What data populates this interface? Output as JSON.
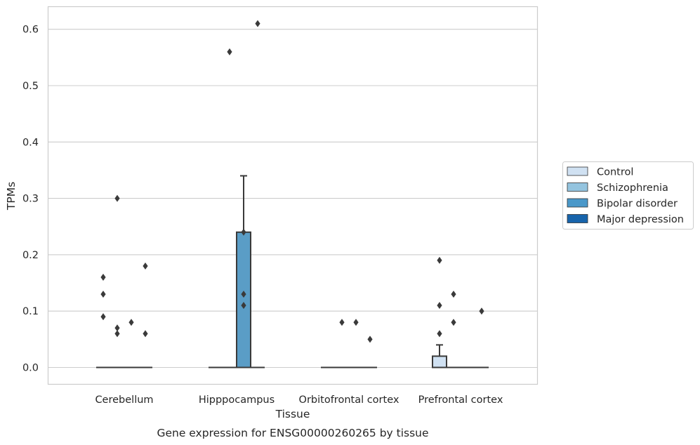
{
  "chart_data": {
    "type": "box",
    "title": "",
    "caption": "Gene expression for ENSG00000260265 by tissue",
    "xlabel": "Tissue",
    "ylabel": "TPMs",
    "ylim": [
      -0.03,
      0.64
    ],
    "yticks": [
      0.0,
      0.1,
      0.2,
      0.3,
      0.4,
      0.5,
      0.6
    ],
    "ytick_labels": [
      "0.0",
      "0.1",
      "0.2",
      "0.3",
      "0.4",
      "0.5",
      "0.6"
    ],
    "categories": [
      "Cerebellum",
      "Hipppocampus",
      "Orbitofrontal cortex",
      "Prefrontal cortex"
    ],
    "grid": true,
    "legend_position": "right",
    "series": [
      {
        "name": "Control",
        "color": "#d0e1f2",
        "boxes": [
          {
            "q1": 0,
            "median": 0,
            "q3": 0,
            "whisker_low": 0,
            "whisker_high": 0,
            "outliers": [
              0.16,
              0.13,
              0.09
            ]
          },
          {
            "q1": 0,
            "median": 0,
            "q3": 0,
            "whisker_low": 0,
            "whisker_high": 0,
            "outliers": []
          },
          {
            "q1": 0,
            "median": 0,
            "q3": 0,
            "whisker_low": 0,
            "whisker_high": 0,
            "outliers": []
          },
          {
            "q1": 0,
            "median": 0,
            "q3": 0.02,
            "whisker_low": 0,
            "whisker_high": 0.04,
            "outliers": [
              0.19,
              0.11,
              0.06
            ]
          }
        ]
      },
      {
        "name": "Schizophrenia",
        "color": "#94c4df",
        "boxes": [
          {
            "q1": 0,
            "median": 0,
            "q3": 0,
            "whisker_low": 0,
            "whisker_high": 0,
            "outliers": [
              0.3,
              0.07,
              0.06
            ]
          },
          {
            "q1": 0,
            "median": 0,
            "q3": 0,
            "whisker_low": 0,
            "whisker_high": 0,
            "outliers": [
              0.56
            ]
          },
          {
            "q1": 0,
            "median": 0,
            "q3": 0,
            "whisker_low": 0,
            "whisker_high": 0,
            "outliers": [
              0.08
            ]
          },
          {
            "q1": 0,
            "median": 0,
            "q3": 0,
            "whisker_low": 0,
            "whisker_high": 0,
            "outliers": [
              0.13,
              0.08
            ]
          }
        ]
      },
      {
        "name": "Bipolar disorder",
        "color": "#4a98c9",
        "boxes": [
          {
            "q1": 0,
            "median": 0,
            "q3": 0,
            "whisker_low": 0,
            "whisker_high": 0,
            "outliers": [
              0.08
            ]
          },
          {
            "q1": 0,
            "median": 0,
            "q3": 0.24,
            "whisker_low": 0,
            "whisker_high": 0.34,
            "outliers": [
              0.24,
              0.13,
              0.11
            ]
          },
          {
            "q1": 0,
            "median": 0,
            "q3": 0,
            "whisker_low": 0,
            "whisker_high": 0,
            "outliers": [
              0.08
            ]
          },
          {
            "q1": 0,
            "median": 0,
            "q3": 0,
            "whisker_low": 0,
            "whisker_high": 0,
            "outliers": []
          }
        ]
      },
      {
        "name": "Major depression",
        "color": "#1764ab",
        "boxes": [
          {
            "q1": 0,
            "median": 0,
            "q3": 0,
            "whisker_low": 0,
            "whisker_high": 0,
            "outliers": [
              0.18,
              0.06
            ]
          },
          {
            "q1": 0,
            "median": 0,
            "q3": 0,
            "whisker_low": 0,
            "whisker_high": 0,
            "outliers": [
              0.61
            ]
          },
          {
            "q1": 0,
            "median": 0,
            "q3": 0,
            "whisker_low": 0,
            "whisker_high": 0,
            "outliers": [
              0.05
            ]
          },
          {
            "q1": 0,
            "median": 0,
            "q3": 0,
            "whisker_low": 0,
            "whisker_high": 0,
            "outliers": [
              0.1
            ]
          }
        ]
      }
    ],
    "box_fill_override": {
      "Hipppocampus|Bipolar disorder": "#5a9dc6",
      "Prefrontal cortex|Control": "#d0e1f2"
    },
    "colors": {
      "grid": "#cccccc",
      "frame": "#cccccc",
      "line": "#3a3a3a"
    }
  }
}
